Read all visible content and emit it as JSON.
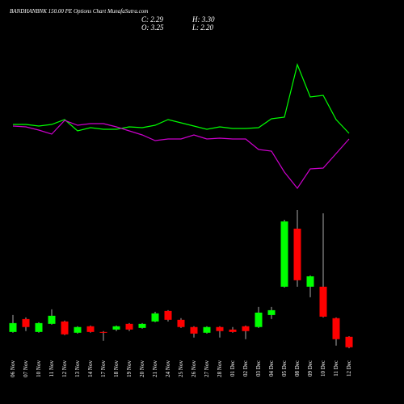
{
  "chart_data": {
    "type": "candlestick",
    "title": "BANDHANBNK 150.00 PE Options Chart MunafaSutra.com",
    "ohlc_text": [
      "C: 2.29",
      "H: 3.30",
      "O: 3.25",
      "L: 2.20"
    ],
    "categories": [
      "06 Nov",
      "07 Nov",
      "10 Nov",
      "11 Nov",
      "12 Nov",
      "13 Nov",
      "14 Nov",
      "17 Nov",
      "18 Nov",
      "19 Nov",
      "20 Nov",
      "21 Nov",
      "24 Nov",
      "25 Nov",
      "26 Nov",
      "27 Nov",
      "28 Nov",
      "01 Dec",
      "02 Dec",
      "03 Dec",
      "04 Dec",
      "05 Dec",
      "08 Dec",
      "09 Dec",
      "10 Dec",
      "11 Dec",
      "12 Dec"
    ],
    "open": [
      3.69,
      4.87,
      3.69,
      4.43,
      4.65,
      3.62,
      4.21,
      3.69,
      3.91,
      4.43,
      4.06,
      4.65,
      5.61,
      4.8,
      4.14,
      3.62,
      4.14,
      3.91,
      4.21,
      4.14,
      5.24,
      7.83,
      13.14,
      7.83,
      7.83,
      4.95,
      3.25
    ],
    "high": [
      5.24,
      5.02,
      4.58,
      5.76,
      4.73,
      4.21,
      4.28,
      3.77,
      4.28,
      4.5,
      4.5,
      5.54,
      5.68,
      4.95,
      4.21,
      4.21,
      4.21,
      4.14,
      4.28,
      5.98,
      5.98,
      13.95,
      14.84,
      8.86,
      14.54,
      5.02,
      3.3
    ],
    "low": [
      3.62,
      3.77,
      3.62,
      4.36,
      3.4,
      3.54,
      3.62,
      2.88,
      3.77,
      3.77,
      3.99,
      4.58,
      4.65,
      4.06,
      3.18,
      3.54,
      3.18,
      3.62,
      3.03,
      4.06,
      4.87,
      7.75,
      7.83,
      6.87,
      5.02,
      2.44,
      2.2
    ],
    "close": [
      4.5,
      4.14,
      4.5,
      5.17,
      3.47,
      4.14,
      3.69,
      3.62,
      4.21,
      3.91,
      4.43,
      5.39,
      4.8,
      4.14,
      3.54,
      4.14,
      3.77,
      3.69,
      3.77,
      5.46,
      5.68,
      13.8,
      8.42,
      8.78,
      5.09,
      3.03,
      2.29
    ],
    "up_color": "#00ff00",
    "down_color": "#ff0000",
    "wick_color": "#aaaaaa",
    "series": [
      {
        "color": "#00ff00",
        "values": [
          106,
          106,
          104,
          106,
          112,
          98,
          102,
          100,
          100,
          103,
          102,
          105,
          112,
          108,
          104,
          100,
          103,
          101,
          101,
          102,
          113,
          115,
          180,
          140,
          142,
          112,
          95
        ]
      },
      {
        "color": "#cc00cc",
        "values": [
          104,
          103,
          99,
          94,
          111,
          105,
          107,
          107,
          103,
          98,
          93,
          86,
          88,
          88,
          93,
          88,
          89,
          88,
          88,
          75,
          73,
          47,
          27,
          51,
          52,
          70,
          88
        ]
      }
    ]
  }
}
